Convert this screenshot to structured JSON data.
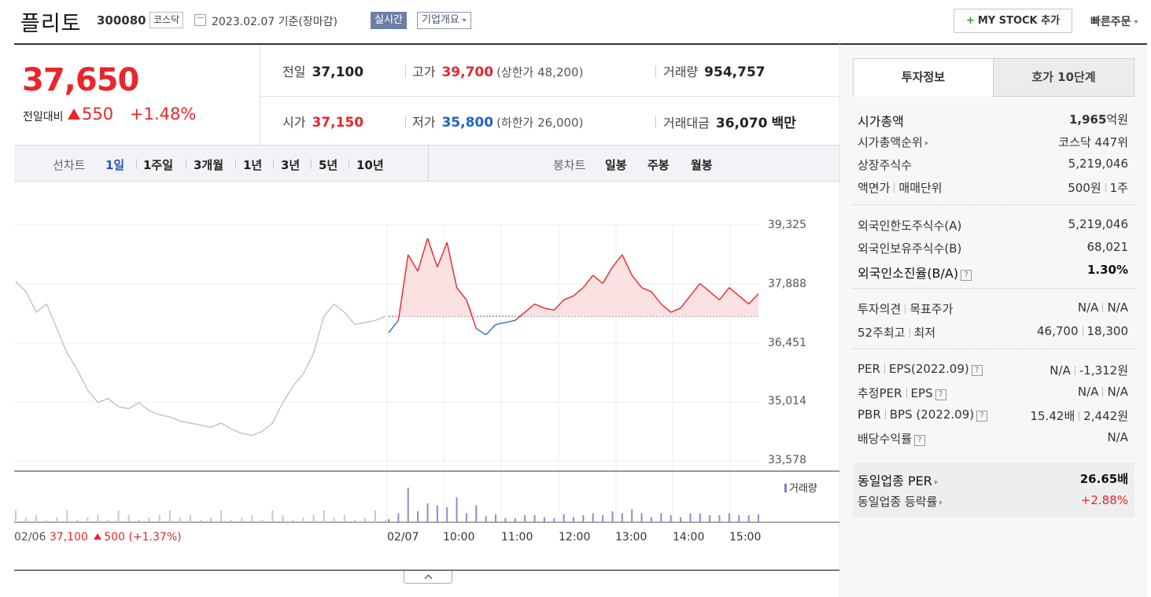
{
  "header": {
    "name": "플리토",
    "code": "300080",
    "market": "코스닥",
    "date": "2023.02.07 기준(장마감)",
    "live_badge": "실시간",
    "company_info": "기업개요",
    "mystock_plus": "+",
    "mystock": "MY STOCK 추가",
    "quick_order": "빠른주문"
  },
  "price": {
    "current": "37,650",
    "change_label": "전일대비",
    "change": "550",
    "rate": "+1.48%"
  },
  "quote": {
    "prev_label": "전일",
    "prev": "37,100",
    "high_label": "고가",
    "high": "39,700",
    "upper_limit": "(상한가 48,200)",
    "volume_label": "거래량",
    "volume": "954,757",
    "open_label": "시가",
    "open": "37,150",
    "low_label": "저가",
    "low": "35,800",
    "lower_limit": "(하한가 26,000)",
    "amount_label": "거래대금",
    "amount": "36,070",
    "amount_unit": "백만"
  },
  "periods": {
    "line_label": "선차트",
    "items": [
      "1일",
      "1주일",
      "3개월",
      "1년",
      "3년",
      "5년",
      "10년"
    ],
    "active": "1일",
    "candle_label": "봉차트",
    "candles": [
      "일봉",
      "주봉",
      "월봉"
    ]
  },
  "chart_data": {
    "type": "line",
    "y_ticks": [
      "39,325",
      "37,888",
      "36,451",
      "35,014",
      "33,578"
    ],
    "x_ticks": [
      "02/06",
      "02/07",
      "10:00",
      "11:00",
      "12:00",
      "13:00",
      "14:00",
      "15:00"
    ],
    "ylim": [
      33578,
      39325
    ],
    "reference_price": 37100,
    "prev_day_summary": {
      "date": "02/06",
      "close": "37,100",
      "change": "500",
      "rate": "(+1.37%)"
    },
    "prev_day": [
      37950,
      37700,
      37200,
      37400,
      36800,
      36200,
      35800,
      35300,
      35000,
      35100,
      34900,
      34850,
      35000,
      34800,
      34700,
      34650,
      34550,
      34500,
      34450,
      34400,
      34500,
      34350,
      34250,
      34200,
      34300,
      34500,
      35000,
      35400,
      35700,
      36200,
      37100,
      37400,
      37200,
      36900,
      36950,
      37000,
      37100
    ],
    "today": [
      36700,
      37000,
      38600,
      38200,
      39000,
      38300,
      38900,
      37800,
      37500,
      36800,
      36650,
      36900,
      36950,
      37000,
      37200,
      37400,
      37300,
      37250,
      37500,
      37600,
      37800,
      38100,
      37900,
      38300,
      38600,
      38100,
      37800,
      37700,
      37400,
      37200,
      37300,
      37600,
      37900,
      37700,
      37500,
      37800,
      37600,
      37400,
      37650
    ],
    "volume_label": "거래량"
  },
  "invest": {
    "tab_on": "투자정보",
    "tab_off": "호가 10단계",
    "market_cap_label": "시가총액",
    "market_cap": "1,965",
    "market_cap_unit": "억원",
    "cap_rank_label": "시가총액순위",
    "cap_rank": "코스닥 447위",
    "shares_label": "상장주식수",
    "shares": "5,219,046",
    "par_label": "액면가",
    "unit_label": "매매단위",
    "par": "500원",
    "unit": "1주",
    "foreign_limit_label": "외국인한도주식수(A)",
    "foreign_limit": "5,219,046",
    "foreign_hold_label": "외국인보유주식수(B)",
    "foreign_hold": "68,021",
    "foreign_ratio_label": "외국인소진율(B/A)",
    "foreign_ratio": "1.30%",
    "opinion_label": "투자의견",
    "target_label": "목표주가",
    "opinion": "N/A",
    "target": "N/A",
    "w52_high_label": "52주최고",
    "w52_low_label": "최저",
    "w52_high": "46,700",
    "w52_low": "18,300",
    "per_label": "PER",
    "eps_label": "EPS(2022.09)",
    "per": "N/A",
    "eps": "-1,312원",
    "est_per_label": "추정PER",
    "est_eps_label": "EPS",
    "est_per": "N/A",
    "est_eps": "N/A",
    "pbr_label": "PBR",
    "bps_label": "BPS (2022.09)",
    "pbr": "15.42배",
    "bps": "2,442원",
    "div_label": "배당수익률",
    "div": "N/A",
    "ind_per_label": "동일업종 PER",
    "ind_per": "26.65배",
    "ind_rate_label": "동일업종 등락률",
    "ind_rate": "+2.88%",
    "help": "?"
  }
}
